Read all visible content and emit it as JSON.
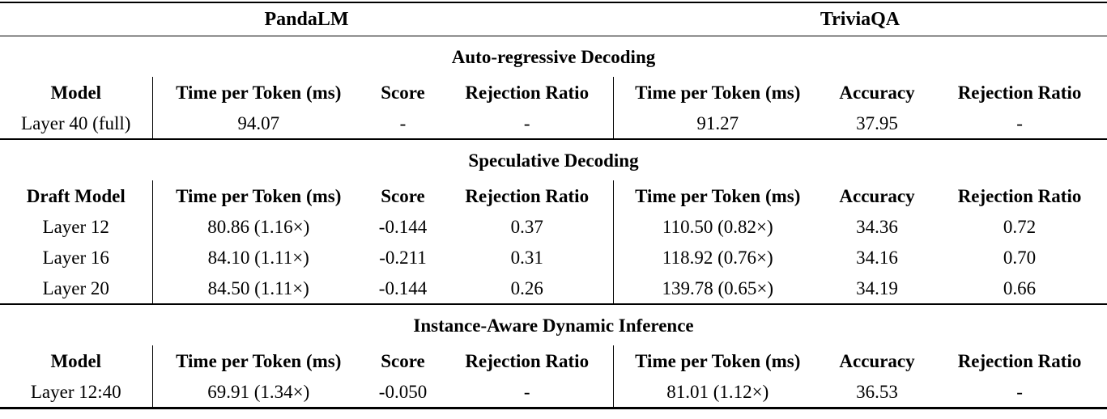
{
  "table": {
    "colors": {
      "text": "#000000",
      "background": "#ffffff",
      "rule": "#000000"
    },
    "group_headers": [
      {
        "label": "PandaLM"
      },
      {
        "label": "TriviaQA"
      }
    ],
    "sections": [
      {
        "title": "Auto-regressive Decoding",
        "columns": [
          "Model",
          "Time per Token (ms)",
          "Score",
          "Rejection Ratio",
          "Time per Token (ms)",
          "Accuracy",
          "Rejection Ratio"
        ],
        "rows": [
          [
            "Layer 40 (full)",
            "94.07",
            "-",
            "-",
            "91.27",
            "37.95",
            "-"
          ]
        ]
      },
      {
        "title": "Speculative Decoding",
        "columns": [
          "Draft Model",
          "Time per Token (ms)",
          "Score",
          "Rejection Ratio",
          "Time per Token (ms)",
          "Accuracy",
          "Rejection Ratio"
        ],
        "rows": [
          [
            "Layer 12",
            "80.86 (1.16×)",
            "-0.144",
            "0.37",
            "110.50 (0.82×)",
            "34.36",
            "0.72"
          ],
          [
            "Layer 16",
            "84.10 (1.11×)",
            "-0.211",
            "0.31",
            "118.92 (0.76×)",
            "34.16",
            "0.70"
          ],
          [
            "Layer 20",
            "84.50 (1.11×)",
            "-0.144",
            "0.26",
            "139.78 (0.65×)",
            "34.19",
            "0.66"
          ]
        ]
      },
      {
        "title": "Instance-Aware Dynamic Inference",
        "columns": [
          "Model",
          "Time per Token (ms)",
          "Score",
          "Rejection Ratio",
          "Time per Token (ms)",
          "Accuracy",
          "Rejection Ratio"
        ],
        "rows": [
          [
            "Layer 12:40",
            "69.91 (1.34×)",
            "-0.050",
            "-",
            "81.01 (1.12×)",
            "36.53",
            "-"
          ]
        ]
      }
    ]
  }
}
